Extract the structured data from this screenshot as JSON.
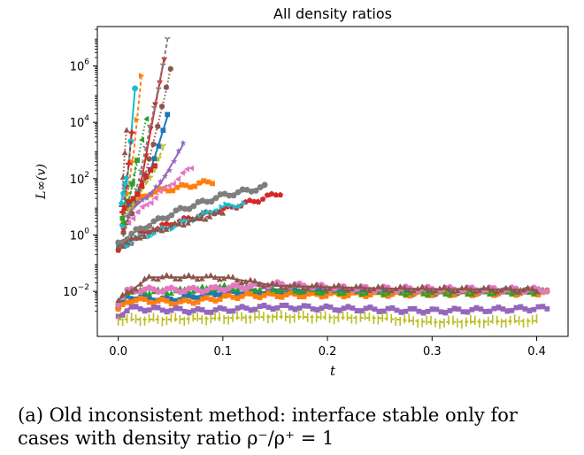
{
  "chart_data": {
    "type": "scatter",
    "title": "All density ratios",
    "xlabel": "t",
    "ylabel": "L∞(v)",
    "xlim": [
      -0.02,
      0.43
    ],
    "ylim_log10": [
      -3.6,
      7.4
    ],
    "yscale": "log",
    "xticks": [
      {
        "value": 0.0,
        "label": "0.0"
      },
      {
        "value": 0.1,
        "label": "0.1"
      },
      {
        "value": 0.2,
        "label": "0.2"
      },
      {
        "value": 0.3,
        "label": "0.3"
      },
      {
        "value": 0.4,
        "label": "0.4"
      }
    ],
    "yticks": [
      {
        "exp": -2,
        "label_base": "10",
        "label_exp": "−2"
      },
      {
        "exp": 0,
        "label_base": "10",
        "label_exp": "0"
      },
      {
        "exp": 2,
        "label_base": "10",
        "label_exp": "2"
      },
      {
        "exp": 4,
        "label_base": "10",
        "label_exp": "4"
      },
      {
        "exp": 6,
        "label_base": "10",
        "label_exp": "6"
      }
    ],
    "grid": false,
    "legend": "none",
    "series": [
      {
        "color": "#1f77b4",
        "marker": "circle",
        "t_end": 0.4,
        "points": [
          [
            0.0,
            -2.6
          ],
          [
            0.008,
            -2.2
          ],
          [
            0.05,
            -2.3
          ],
          [
            0.1,
            -2.05
          ],
          [
            0.2,
            -2.0
          ],
          [
            0.3,
            -2.05
          ],
          [
            0.4,
            -2.0
          ]
        ]
      },
      {
        "color": "#ff7f0e",
        "marker": "square",
        "t_end": 0.41,
        "points": [
          [
            0.0,
            -2.7
          ],
          [
            0.01,
            -2.3
          ],
          [
            0.06,
            -2.4
          ],
          [
            0.12,
            -2.15
          ],
          [
            0.25,
            -2.1
          ],
          [
            0.41,
            -2.05
          ]
        ]
      },
      {
        "color": "#2ca02c",
        "marker": "triangle",
        "t_end": 0.41,
        "points": [
          [
            0.0,
            -2.5
          ],
          [
            0.008,
            -2.0
          ],
          [
            0.05,
            -2.0
          ],
          [
            0.1,
            -1.85
          ],
          [
            0.2,
            -2.0
          ],
          [
            0.3,
            -2.05
          ],
          [
            0.41,
            -2.0
          ]
        ]
      },
      {
        "color": "#9467bd",
        "marker": "square",
        "t_end": 0.41,
        "points": [
          [
            0.0,
            -2.9
          ],
          [
            0.01,
            -2.6
          ],
          [
            0.08,
            -2.7
          ],
          [
            0.15,
            -2.55
          ],
          [
            0.3,
            -2.7
          ],
          [
            0.41,
            -2.6
          ]
        ]
      },
      {
        "color": "#bcbd22",
        "marker": "tick",
        "t_end": 0.4,
        "points": [
          [
            0.0,
            -3.0
          ],
          [
            0.05,
            -3.0
          ],
          [
            0.15,
            -2.9
          ],
          [
            0.25,
            -2.95
          ],
          [
            0.3,
            -3.1
          ],
          [
            0.4,
            -3.05
          ]
        ]
      },
      {
        "color": "#e377c2",
        "marker": "circle",
        "t_end": 0.41,
        "points": [
          [
            0.0,
            -2.4
          ],
          [
            0.01,
            -1.95
          ],
          [
            0.08,
            -1.95
          ],
          [
            0.15,
            -1.75
          ],
          [
            0.22,
            -1.9
          ],
          [
            0.41,
            -1.95
          ]
        ]
      },
      {
        "color": "#8c564b",
        "marker": "triangle",
        "t_end": 0.4,
        "points": [
          [
            0.0,
            -2.3
          ],
          [
            0.03,
            -1.5
          ],
          [
            0.1,
            -1.5
          ],
          [
            0.15,
            -1.8
          ],
          [
            0.25,
            -1.9
          ],
          [
            0.4,
            -1.95
          ]
        ]
      },
      {
        "color": "#d62728",
        "marker": "pentagon",
        "t_end": 0.155,
        "points": [
          [
            0.0,
            -0.6
          ],
          [
            0.02,
            0.0
          ],
          [
            0.05,
            0.4
          ],
          [
            0.1,
            0.9
          ],
          [
            0.13,
            1.2
          ],
          [
            0.155,
            1.5
          ]
        ]
      },
      {
        "color": "#17becf",
        "marker": "triangle-right",
        "t_end": 0.12,
        "points": [
          [
            0.0,
            -0.5
          ],
          [
            0.02,
            -0.1
          ],
          [
            0.06,
            0.4
          ],
          [
            0.1,
            1.0
          ],
          [
            0.12,
            1.1
          ]
        ]
      },
      {
        "color": "#7f7f7f",
        "marker": "circle",
        "t_end": 0.14,
        "points": [
          [
            0.0,
            -0.3
          ],
          [
            0.02,
            0.2
          ],
          [
            0.06,
            0.9
          ],
          [
            0.1,
            1.4
          ],
          [
            0.14,
            1.7
          ]
        ]
      },
      {
        "color": "#8c564b",
        "marker": "triangle",
        "t_end": 0.1,
        "points": [
          [
            0.0,
            -0.4
          ],
          [
            0.03,
            0.1
          ],
          [
            0.07,
            0.5
          ],
          [
            0.1,
            0.8
          ]
        ]
      },
      {
        "color": "#ff7f0e",
        "marker": "square",
        "t_end": 0.09,
        "points": [
          [
            0.01,
            1.0
          ],
          [
            0.03,
            1.5
          ],
          [
            0.06,
            1.7
          ],
          [
            0.09,
            1.9
          ]
        ]
      },
      {
        "color": "#d62728",
        "marker": "triangle-down",
        "t_end": 0.044,
        "points": [
          [
            0.005,
            0.2
          ],
          [
            0.02,
            1.5
          ],
          [
            0.035,
            4.5
          ],
          [
            0.044,
            6.3
          ]
        ]
      },
      {
        "color": "#7f7f7f",
        "marker": "tri",
        "t_end": 0.047,
        "points": [
          [
            0.005,
            0.0
          ],
          [
            0.02,
            2.0
          ],
          [
            0.04,
            5.5
          ],
          [
            0.047,
            6.9
          ]
        ]
      },
      {
        "color": "#8c564b",
        "marker": "hexagon",
        "t_end": 0.05,
        "points": [
          [
            0.005,
            0.0
          ],
          [
            0.025,
            2.0
          ],
          [
            0.045,
            5.0
          ],
          [
            0.05,
            5.9
          ]
        ]
      },
      {
        "color": "#17becf",
        "marker": "circle",
        "t_end": 0.016,
        "points": [
          [
            0.004,
            0.3
          ],
          [
            0.01,
            2.5
          ],
          [
            0.016,
            5.2
          ]
        ]
      },
      {
        "color": "#ff7f0e",
        "marker": "triangle-right",
        "t_end": 0.022,
        "points": [
          [
            0.005,
            0.5
          ],
          [
            0.015,
            3.0
          ],
          [
            0.022,
            5.6
          ]
        ]
      },
      {
        "color": "#2ca02c",
        "marker": "triangle-left",
        "t_end": 0.027,
        "points": [
          [
            0.005,
            0.5
          ],
          [
            0.015,
            2.0
          ],
          [
            0.027,
            4.2
          ]
        ]
      },
      {
        "color": "#9467bd",
        "marker": "star",
        "t_end": 0.062,
        "points": [
          [
            0.01,
            0.8
          ],
          [
            0.04,
            1.8
          ],
          [
            0.062,
            3.2
          ]
        ]
      },
      {
        "color": "#d62728",
        "marker": "plus",
        "t_end": 0.013,
        "points": [
          [
            0.004,
            0.8
          ],
          [
            0.01,
            2.5
          ],
          [
            0.013,
            3.7
          ]
        ]
      },
      {
        "color": "#8c564b",
        "marker": "triangle",
        "t_end": 0.008,
        "points": [
          [
            0.003,
            1.0
          ],
          [
            0.006,
            2.8
          ],
          [
            0.008,
            3.8
          ]
        ]
      },
      {
        "color": "#1f77b4",
        "marker": "square",
        "t_end": 0.047,
        "points": [
          [
            0.01,
            1.0
          ],
          [
            0.03,
            2.2
          ],
          [
            0.047,
            4.2
          ]
        ]
      },
      {
        "color": "#bcbd22",
        "marker": "tri",
        "t_end": 0.043,
        "points": [
          [
            0.01,
            0.9
          ],
          [
            0.03,
            2.0
          ],
          [
            0.043,
            3.1
          ]
        ]
      },
      {
        "color": "#e377c2",
        "marker": "triangle-left",
        "t_end": 0.07,
        "points": [
          [
            0.01,
            0.5
          ],
          [
            0.04,
            1.5
          ],
          [
            0.07,
            2.4
          ]
        ]
      },
      {
        "color": "#17becf",
        "marker": "diamond",
        "t_end": 0.008,
        "points": [
          [
            0.003,
            1.2
          ],
          [
            0.008,
            2.0
          ]
        ]
      },
      {
        "color": "#2ca02c",
        "marker": "square",
        "t_end": 0.018,
        "points": [
          [
            0.004,
            0.6
          ],
          [
            0.012,
            1.5
          ],
          [
            0.018,
            2.7
          ]
        ]
      },
      {
        "color": "#d62728",
        "marker": "square",
        "t_end": 0.035,
        "points": [
          [
            0.006,
            0.9
          ],
          [
            0.02,
            1.6
          ],
          [
            0.035,
            2.5
          ]
        ]
      }
    ]
  },
  "caption": {
    "line1": "(a) Old inconsistent method: interface stable only for",
    "line2": "cases with density ratio ρ⁻/ρ⁺ = 1"
  }
}
